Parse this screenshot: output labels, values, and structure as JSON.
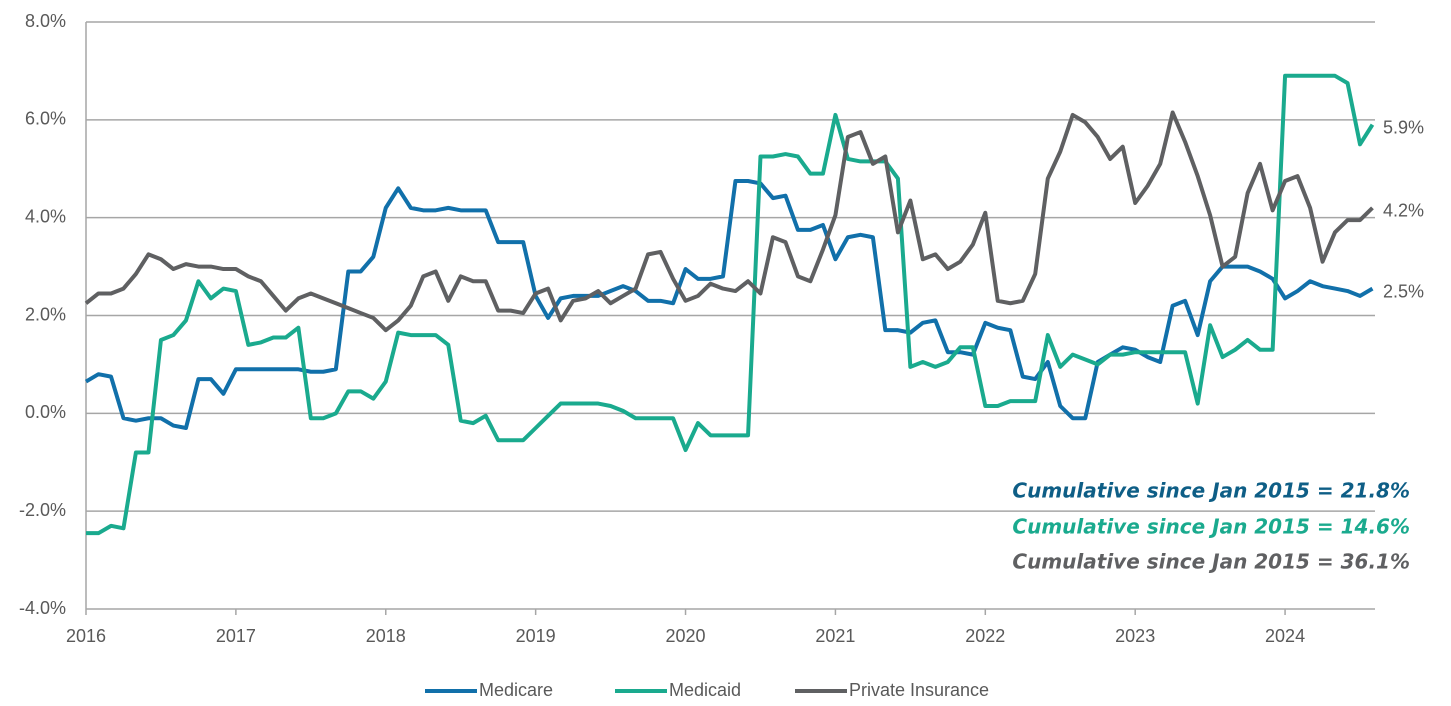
{
  "chart_data": {
    "type": "line",
    "x": [
      2016,
      2016.083,
      2016.167,
      2016.25,
      2016.333,
      2016.417,
      2016.5,
      2016.583,
      2016.667,
      2016.75,
      2016.833,
      2016.917,
      2017,
      2017.083,
      2017.167,
      2017.25,
      2017.333,
      2017.417,
      2017.5,
      2017.583,
      2017.667,
      2017.75,
      2017.833,
      2017.917,
      2018,
      2018.083,
      2018.167,
      2018.25,
      2018.333,
      2018.417,
      2018.5,
      2018.583,
      2018.667,
      2018.75,
      2018.833,
      2018.917,
      2019,
      2019.083,
      2019.167,
      2019.25,
      2019.333,
      2019.417,
      2019.5,
      2019.583,
      2019.667,
      2019.75,
      2019.833,
      2019.917,
      2020,
      2020.083,
      2020.167,
      2020.25,
      2020.333,
      2020.417,
      2020.5,
      2020.583,
      2020.667,
      2020.75,
      2020.833,
      2020.917,
      2021,
      2021.083,
      2021.167,
      2021.25,
      2021.333,
      2021.417,
      2021.5,
      2021.583,
      2021.667,
      2021.75,
      2021.833,
      2021.917,
      2022,
      2022.083,
      2022.167,
      2022.25,
      2022.333,
      2022.417,
      2022.5,
      2022.583,
      2022.667,
      2022.75,
      2022.833,
      2022.917,
      2023,
      2023.083,
      2023.167,
      2023.25,
      2023.333,
      2023.417,
      2023.5,
      2023.583,
      2023.667,
      2023.75,
      2023.833,
      2023.917,
      2024,
      2024.083,
      2024.167,
      2024.25,
      2024.333,
      2024.417,
      2024.5,
      2024.583
    ],
    "series": [
      {
        "name": "Medicare",
        "color": "#1170aa",
        "end_label": "2.5%",
        "annotation": "Cumulative since Jan 2015 = 21.8%",
        "annotation_color": "#0e5e86",
        "values": [
          0.65,
          0.8,
          0.75,
          -0.1,
          -0.15,
          -0.1,
          -0.1,
          -0.25,
          -0.3,
          0.7,
          0.7,
          0.4,
          0.9,
          0.9,
          0.9,
          0.9,
          0.9,
          0.9,
          0.85,
          0.85,
          0.9,
          2.9,
          2.9,
          3.2,
          4.2,
          4.6,
          4.2,
          4.15,
          4.15,
          4.2,
          4.15,
          4.15,
          4.15,
          3.5,
          3.5,
          3.5,
          2.4,
          1.95,
          2.35,
          2.4,
          2.4,
          2.4,
          2.5,
          2.6,
          2.5,
          2.3,
          2.3,
          2.25,
          2.95,
          2.75,
          2.75,
          2.8,
          4.75,
          4.75,
          4.7,
          4.4,
          4.45,
          3.75,
          3.75,
          3.85,
          3.15,
          3.6,
          3.65,
          3.6,
          1.7,
          1.7,
          1.65,
          1.85,
          1.9,
          1.25,
          1.25,
          1.2,
          1.85,
          1.75,
          1.7,
          0.75,
          0.7,
          1.05,
          0.15,
          -0.1,
          -0.1,
          1.05,
          1.2,
          1.35,
          1.3,
          1.15,
          1.05,
          2.2,
          2.3,
          1.6,
          2.7,
          3.0,
          3.0,
          3.0,
          2.9,
          2.75,
          2.35,
          2.5,
          2.7,
          2.6,
          2.55,
          2.5,
          2.4,
          2.55
        ]
      },
      {
        "name": "Medicaid",
        "color": "#1aaa8e",
        "end_label": "5.9%",
        "annotation": "Cumulative since Jan 2015 = 14.6%",
        "annotation_color": "#1aaa8e",
        "values": [
          -2.45,
          -2.45,
          -2.3,
          -2.35,
          -0.8,
          -0.8,
          1.5,
          1.6,
          1.9,
          2.7,
          2.35,
          2.55,
          2.5,
          1.4,
          1.45,
          1.55,
          1.55,
          1.75,
          -0.1,
          -0.1,
          0.0,
          0.45,
          0.45,
          0.3,
          0.65,
          1.65,
          1.6,
          1.6,
          1.6,
          1.4,
          -0.15,
          -0.2,
          -0.05,
          -0.55,
          -0.55,
          -0.55,
          -0.3,
          -0.05,
          0.2,
          0.2,
          0.2,
          0.2,
          0.15,
          0.05,
          -0.1,
          -0.1,
          -0.1,
          -0.1,
          -0.75,
          -0.2,
          -0.45,
          -0.45,
          -0.45,
          -0.45,
          5.25,
          5.25,
          5.3,
          5.25,
          4.9,
          4.9,
          6.1,
          5.2,
          5.15,
          5.15,
          5.15,
          4.8,
          0.95,
          1.05,
          0.95,
          1.05,
          1.35,
          1.35,
          0.15,
          0.15,
          0.25,
          0.25,
          0.25,
          1.6,
          0.95,
          1.2,
          1.1,
          1.0,
          1.2,
          1.2,
          1.25,
          1.25,
          1.25,
          1.25,
          1.25,
          0.2,
          1.8,
          1.15,
          1.3,
          1.5,
          1.3,
          1.3,
          6.9,
          6.9,
          6.9,
          6.9,
          6.9,
          6.75,
          5.5,
          5.9
        ]
      },
      {
        "name": "Private Insurance",
        "color": "#5f6062",
        "end_label": "4.2%",
        "annotation": "Cumulative since Jan 2015 = 36.1%",
        "annotation_color": "#5f6062",
        "values": [
          2.25,
          2.45,
          2.45,
          2.55,
          2.85,
          3.25,
          3.15,
          2.95,
          3.05,
          3.0,
          3.0,
          2.95,
          2.95,
          2.8,
          2.7,
          2.4,
          2.1,
          2.35,
          2.45,
          2.35,
          2.25,
          2.15,
          2.05,
          1.95,
          1.7,
          1.9,
          2.2,
          2.8,
          2.9,
          2.3,
          2.8,
          2.7,
          2.7,
          2.1,
          2.1,
          2.05,
          2.45,
          2.55,
          1.9,
          2.3,
          2.35,
          2.5,
          2.25,
          2.4,
          2.55,
          3.25,
          3.3,
          2.75,
          2.3,
          2.4,
          2.65,
          2.55,
          2.5,
          2.7,
          2.45,
          3.6,
          3.5,
          2.8,
          2.7,
          3.35,
          4.05,
          5.65,
          5.75,
          5.1,
          5.25,
          3.7,
          4.35,
          3.15,
          3.25,
          2.95,
          3.1,
          3.45,
          4.1,
          2.3,
          2.25,
          2.3,
          2.85,
          4.8,
          5.35,
          6.1,
          5.95,
          5.65,
          5.2,
          5.45,
          4.3,
          4.65,
          5.1,
          6.15,
          5.55,
          4.85,
          4.05,
          3.0,
          3.2,
          4.5,
          5.1,
          4.15,
          4.75,
          4.85,
          4.2,
          3.1,
          3.7,
          3.95,
          3.95,
          4.2
        ]
      }
    ],
    "xlim": [
      2016,
      2024.6
    ],
    "xticks": [
      2016,
      2017,
      2018,
      2019,
      2020,
      2021,
      2022,
      2023,
      2024
    ],
    "ylim": [
      -4,
      8
    ],
    "yticks": [
      {
        "value": -4,
        "label": "-4.0%"
      },
      {
        "value": -2,
        "label": "-2.0%"
      },
      {
        "value": 0,
        "label": "0.0%"
      },
      {
        "value": 2,
        "label": "2.0%"
      },
      {
        "value": 4,
        "label": "4.0%"
      },
      {
        "value": 6,
        "label": "6.0%"
      },
      {
        "value": 8,
        "label": "8.0%"
      }
    ],
    "grid": true,
    "legend": "bottom"
  }
}
